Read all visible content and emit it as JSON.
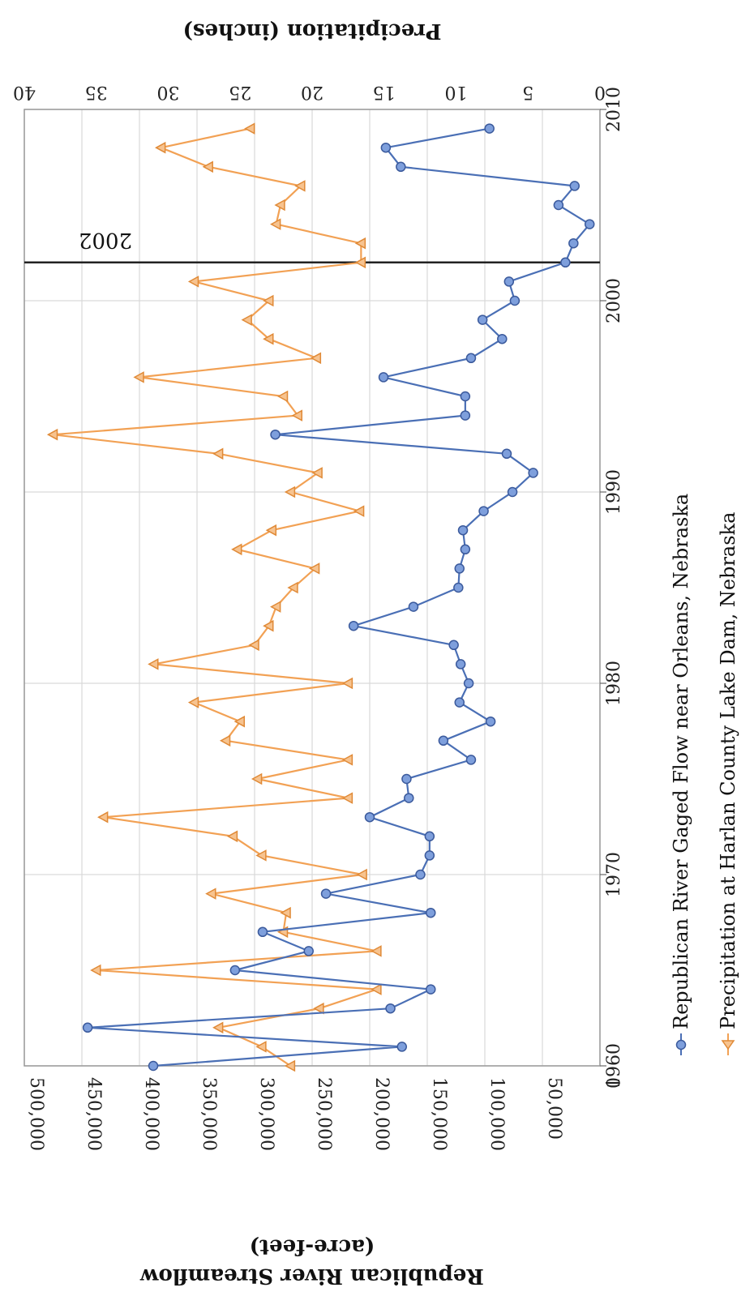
{
  "chart_data": {
    "type": "line",
    "orientation": "rotated-90-clockwise",
    "x": [
      1960,
      1961,
      1962,
      1963,
      1964,
      1965,
      1966,
      1967,
      1968,
      1969,
      1970,
      1971,
      1972,
      1973,
      1974,
      1975,
      1976,
      1977,
      1978,
      1979,
      1980,
      1981,
      1982,
      1983,
      1984,
      1985,
      1986,
      1987,
      1988,
      1989,
      1990,
      1991,
      1992,
      1993,
      1994,
      1995,
      1996,
      1997,
      1998,
      1999,
      2000,
      2001,
      2002,
      2003,
      2004,
      2005,
      2006,
      2007,
      2008,
      2009
    ],
    "xlim": [
      1960,
      2010
    ],
    "x_ticks": [
      "1960",
      "1970",
      "1980",
      "1990",
      "2000",
      "2010"
    ],
    "y_left_ticks": [
      "0",
      "50,000",
      "100,000",
      "150,000",
      "200,000",
      "250,000",
      "300,000",
      "350,000",
      "400,000",
      "450,000",
      "500,000"
    ],
    "y_left_lim": [
      0,
      500000
    ],
    "y_right_ticks": [
      "0",
      "5",
      "10",
      "15",
      "20",
      "25",
      "30",
      "35",
      "40"
    ],
    "y_right_lim": [
      0,
      40
    ],
    "y_left_label": "Republican River Streamflow",
    "y_left_label_2": "(acre-feet)",
    "y_right_label": "Precipitation (inches)",
    "grid": true,
    "legend_position": "right",
    "series": [
      {
        "name": "Republican River Gaged Flow near Orleans, Nebraska",
        "axis": "left",
        "color": "#4a6fb5",
        "marker": "circle",
        "values": [
          388000,
          172000,
          445000,
          182000,
          147000,
          317000,
          253000,
          293000,
          147000,
          238000,
          156000,
          148000,
          148000,
          200000,
          166000,
          168000,
          112000,
          136000,
          95000,
          122000,
          114000,
          121000,
          127000,
          214000,
          162000,
          123000,
          122000,
          117000,
          119000,
          101000,
          76000,
          58000,
          81000,
          282000,
          117000,
          117000,
          188000,
          112000,
          85000,
          102000,
          74000,
          79000,
          30000,
          23000,
          9000,
          36000,
          22000,
          173000,
          186000,
          96000
        ]
      },
      {
        "name": "Precipitation at Harlan County Lake Dam, Nebraska",
        "axis": "right",
        "color": "#f2a154",
        "marker": "triangle",
        "values": [
          21.5,
          23.5,
          26.5,
          19.5,
          15.5,
          35.0,
          15.5,
          22.0,
          21.8,
          27.0,
          16.5,
          23.5,
          25.5,
          34.5,
          17.5,
          23.8,
          17.5,
          26.0,
          25.0,
          28.2,
          17.5,
          31.0,
          24.0,
          23.0,
          22.5,
          21.3,
          19.8,
          25.2,
          22.8,
          16.7,
          21.5,
          19.6,
          26.5,
          38.0,
          21.0,
          22.0,
          32.0,
          19.7,
          23.0,
          24.5,
          23.0,
          28.2,
          16.6,
          16.6,
          22.5,
          22.2,
          20.8,
          27.2,
          30.5,
          24.3
        ]
      }
    ],
    "vline": {
      "x": 2002,
      "label": "2002"
    }
  }
}
